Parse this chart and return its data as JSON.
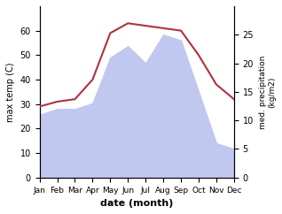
{
  "months": [
    "Jan",
    "Feb",
    "Mar",
    "Apr",
    "May",
    "Jun",
    "Jul",
    "Aug",
    "Sep",
    "Oct",
    "Nov",
    "Dec"
  ],
  "temp_max": [
    29,
    31,
    32,
    40,
    59,
    63,
    62,
    61,
    60,
    50,
    38,
    32
  ],
  "precipitation": [
    11,
    12,
    12,
    13,
    21,
    23,
    20,
    25,
    24,
    15,
    6,
    5
  ],
  "temp_color": "#b03040",
  "precip_fill_color": "#c0c8f0",
  "ylabel_left": "max temp (C)",
  "ylabel_right": "med. precipitation\n(kg/m2)",
  "xlabel": "date (month)",
  "ylim_left": [
    0,
    70
  ],
  "ylim_right": [
    0,
    30
  ],
  "yticks_left": [
    0,
    10,
    20,
    30,
    40,
    50,
    60
  ],
  "yticks_right": [
    0,
    5,
    10,
    15,
    20,
    25
  ],
  "figsize": [
    3.18,
    2.42
  ],
  "dpi": 100
}
